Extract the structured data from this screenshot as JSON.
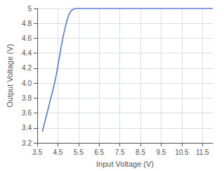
{
  "chart_data": {
    "type": "line",
    "xlabel": "Input Voltage (V)",
    "ylabel": "Output Voltage (V)",
    "x": [
      3.75,
      3.85,
      3.95,
      4.05,
      4.15,
      4.25,
      4.35,
      4.45,
      4.55,
      4.65,
      4.75,
      4.85,
      4.95,
      5.05,
      5.15,
      5.25,
      5.35,
      5.45,
      12.0
    ],
    "values": [
      3.35,
      3.46,
      3.57,
      3.68,
      3.79,
      3.9,
      4.01,
      4.15,
      4.31,
      4.47,
      4.62,
      4.74,
      4.85,
      4.93,
      4.97,
      4.99,
      5.0,
      5.0,
      5.0
    ],
    "xlim": [
      3.5,
      12.0
    ],
    "ylim": [
      3.2,
      5.0
    ],
    "xticks": [
      3.5,
      4.5,
      5.5,
      6.5,
      7.5,
      8.5,
      9.5,
      10.5,
      11.5
    ],
    "yticks": [
      3.2,
      3.4,
      3.6,
      3.8,
      {
        "value": 4.0,
        "label": "4.0"
      },
      4.2,
      4.4,
      4.6,
      4.8,
      5
    ],
    "grid": true
  }
}
